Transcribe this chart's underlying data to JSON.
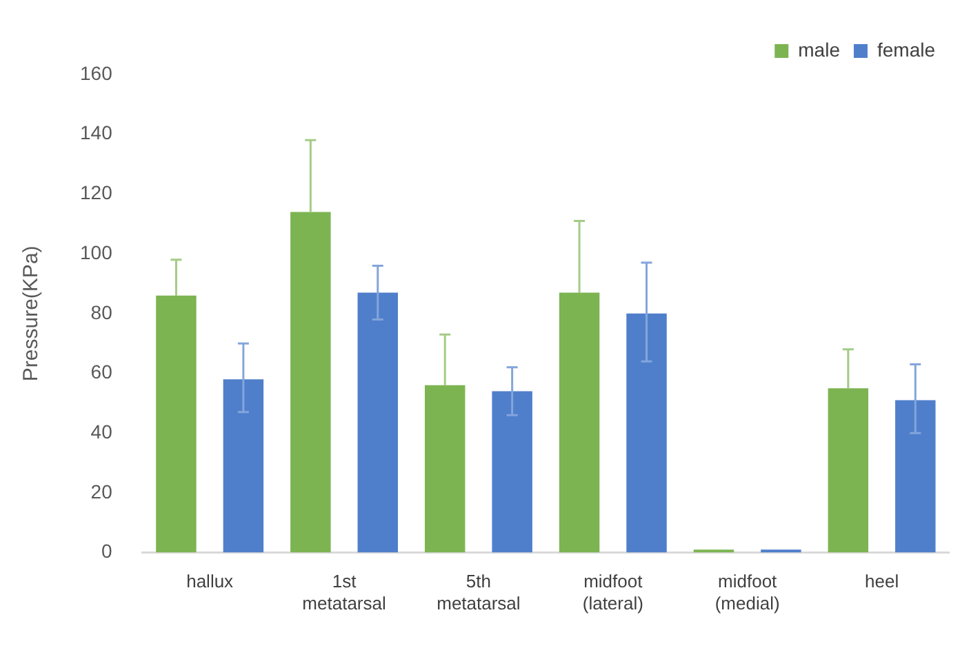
{
  "chart_data": {
    "type": "bar",
    "ylabel": "Pressure(KPa)",
    "categories": [
      "hallux",
      "1st metatarsal",
      "5th metatarsal",
      "midfoot (lateral)",
      "midfoot (medial)",
      "heel"
    ],
    "series": [
      {
        "name": "male",
        "color": "#7cb452",
        "values": [
          86,
          114,
          56,
          87,
          1,
          55
        ],
        "errors": [
          [
            86,
            98
          ],
          [
            114,
            138
          ],
          [
            56,
            73
          ],
          [
            87,
            111
          ],
          null,
          [
            55,
            68
          ]
        ]
      },
      {
        "name": "female",
        "color": "#4f7fcb",
        "values": [
          58,
          87,
          54,
          80,
          1,
          51
        ],
        "errors": [
          [
            47,
            70
          ],
          [
            78,
            96
          ],
          [
            46,
            62
          ],
          [
            64,
            97
          ],
          null,
          [
            40,
            63
          ]
        ]
      }
    ],
    "ylim": [
      0,
      160
    ],
    "yticks": [
      0,
      20,
      40,
      60,
      80,
      100,
      120,
      140,
      160
    ],
    "grid": false,
    "legend": "top right"
  }
}
